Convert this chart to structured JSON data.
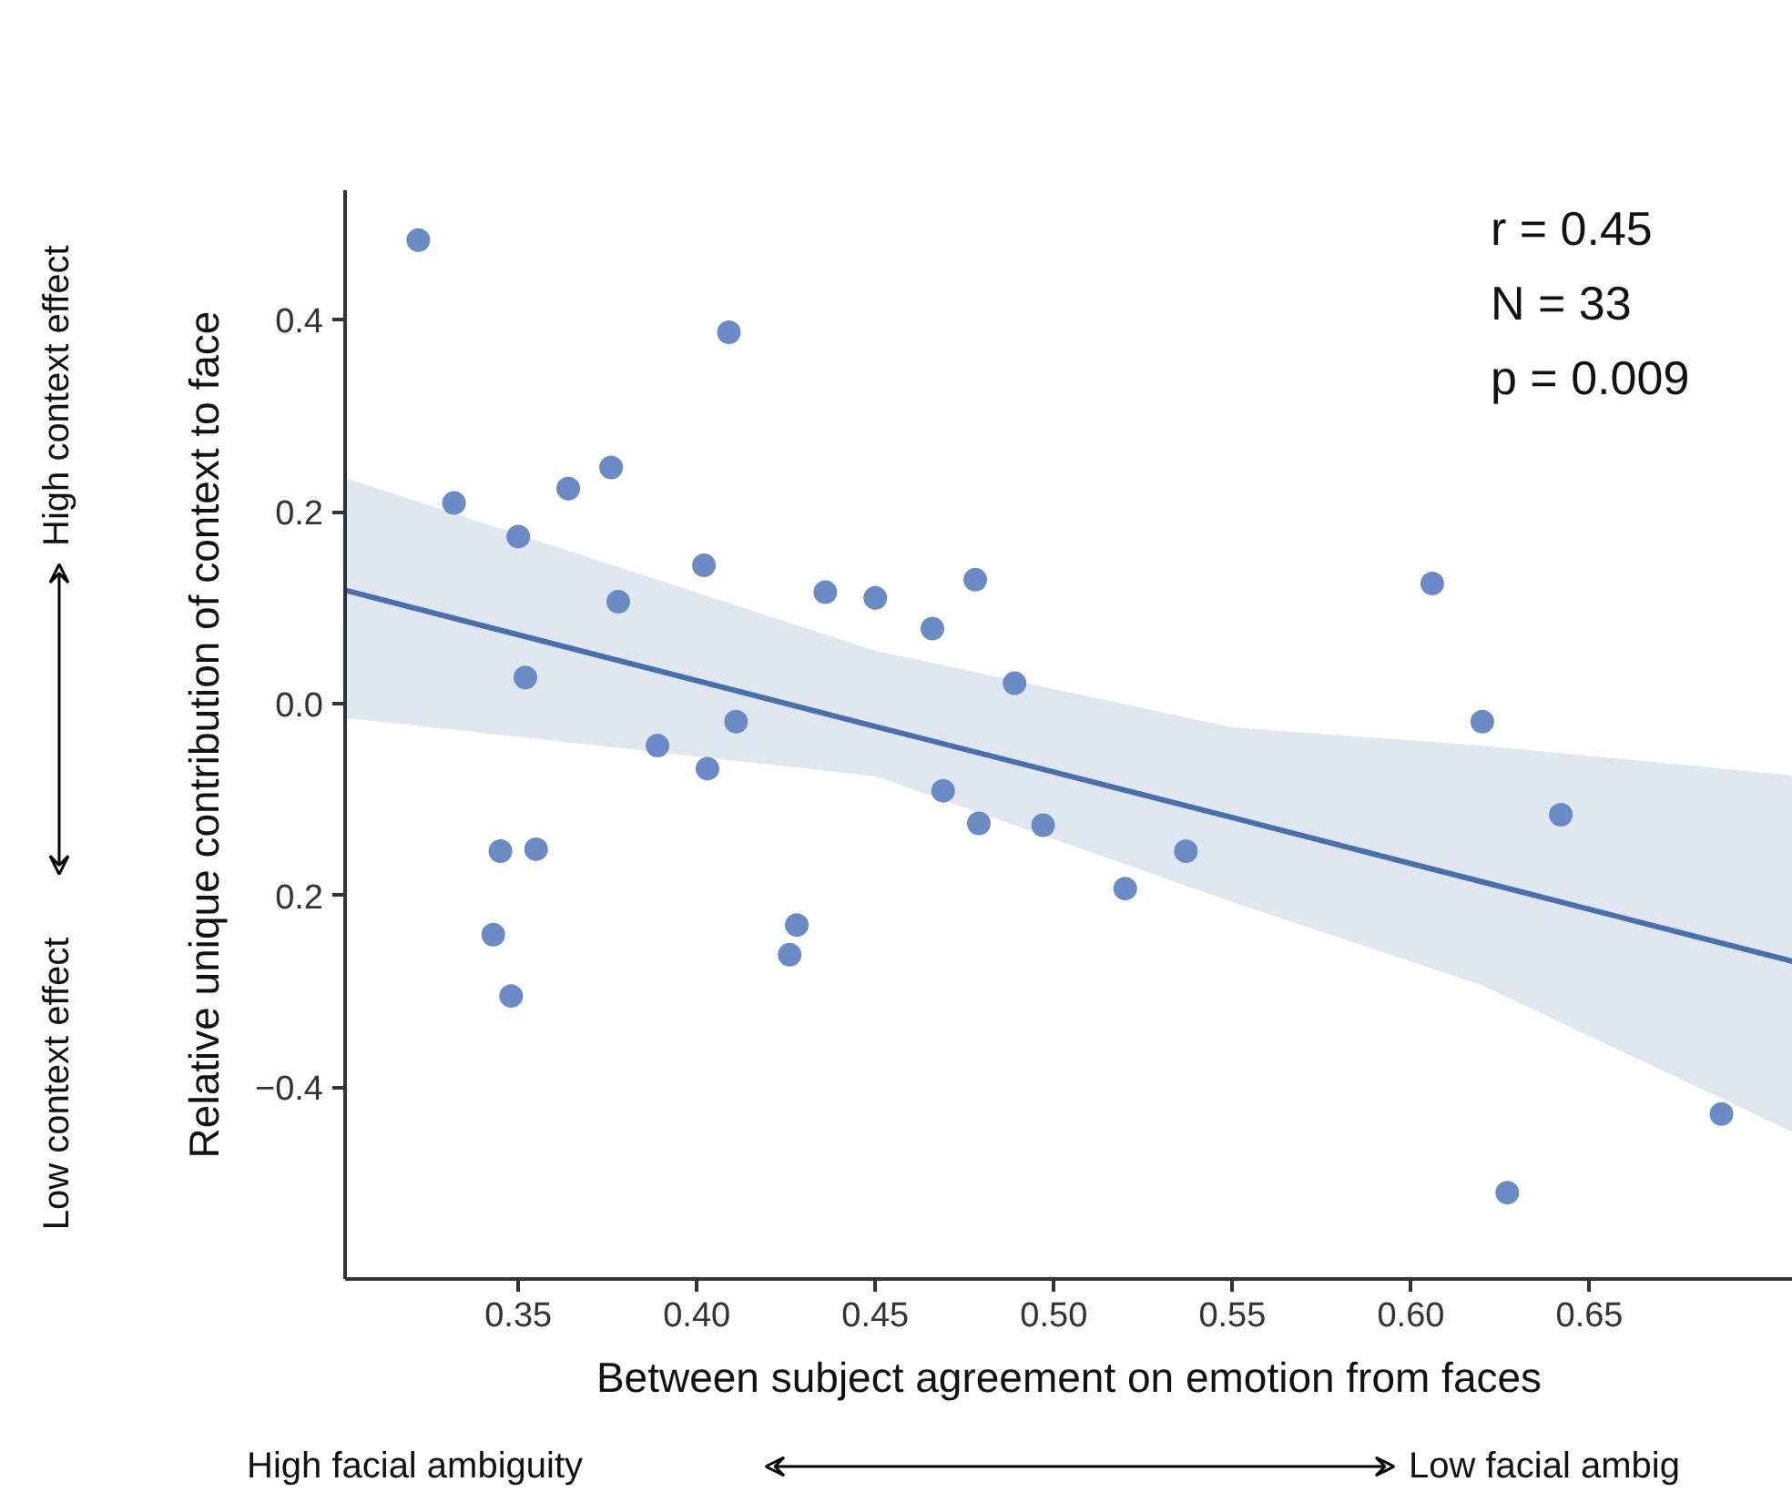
{
  "chart_data": {
    "type": "scatter",
    "xlabel": "Between subject agreement on emotion from faces",
    "ylabel": "Relative unique contribution of context to face",
    "xlim": [
      0.3015,
      0.707
    ],
    "ylim": [
      -0.6,
      0.535
    ],
    "xticks": [
      0.35,
      {
        "value": 0.4,
        "label": "0.40"
      },
      0.45,
      {
        "value": 0.5,
        "label": "0.50"
      },
      0.55,
      {
        "value": 0.6,
        "label": "0.60"
      },
      0.65
    ],
    "yticks": [
      {
        "value": -0.4,
        "label": "−0.4"
      },
      {
        "value": -0.2,
        "label": "0.2"
      },
      {
        "value": 0.0,
        "label": "0.0"
      },
      0.2,
      0.4
    ],
    "grid": false,
    "annotations": [
      "r = 0.45",
      "N = 33",
      "p = 0.009",
      "High context effect",
      "Low context effect",
      "High facial ambiguity",
      "Low facial ambig"
    ],
    "series": [
      {
        "marker": "circle",
        "color": "#6a8bc6",
        "x": [
          0.322,
          0.332,
          0.35,
          0.364,
          0.376,
          0.378,
          0.402,
          0.409,
          0.352,
          0.389,
          0.403,
          0.411,
          0.345,
          0.355,
          0.343,
          0.348,
          0.436,
          0.45,
          0.466,
          0.478,
          0.489,
          0.469,
          0.479,
          0.497,
          0.537,
          0.52,
          0.428,
          0.426,
          0.606,
          0.62,
          0.642,
          0.687,
          0.627
        ],
        "values": [
          0.483,
          0.209,
          0.174,
          0.224,
          0.246,
          0.106,
          0.144,
          0.387,
          0.027,
          -0.044,
          -0.068,
          -0.019,
          -0.154,
          -0.152,
          -0.241,
          -0.305,
          0.116,
          0.11,
          0.078,
          0.129,
          0.021,
          -0.091,
          -0.125,
          -0.127,
          -0.154,
          -0.193,
          -0.231,
          -0.262,
          0.125,
          -0.019,
          -0.116,
          -0.428,
          -0.51
        ]
      },
      {
        "type": "line",
        "color": "#4a6fae",
        "x": [
          0.3015,
          0.45,
          0.55,
          0.62,
          0.707
        ],
        "values": [
          0.118,
          -0.024,
          -0.119,
          -0.186,
          -0.269
        ],
        "lower": [
          -0.015,
          -0.076,
          -0.207,
          -0.294,
          -0.447
        ],
        "upper": [
          0.235,
          0.055,
          -0.025,
          -0.044,
          -0.075
        ]
      }
    ]
  }
}
